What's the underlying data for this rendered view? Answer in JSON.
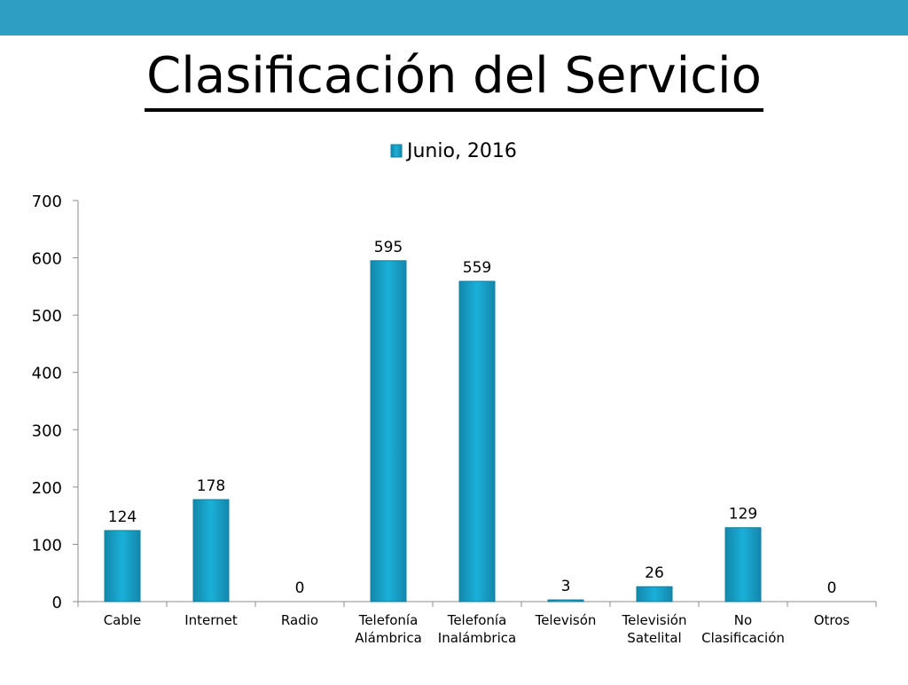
{
  "slide": {
    "title": "Clasificación del Servicio",
    "accent_color": "#2e9fc2"
  },
  "chart_data": {
    "type": "bar",
    "legend_position": "top",
    "grid": false,
    "categories": [
      [
        "Cable"
      ],
      [
        "Internet"
      ],
      [
        "Radio"
      ],
      [
        "Telefonía",
        "Alámbrica"
      ],
      [
        "Telefonía",
        "Inalámbrica"
      ],
      [
        "Televisón"
      ],
      [
        "Televisión",
        "Satelital"
      ],
      [
        "No",
        "Clasificación"
      ],
      [
        "Otros"
      ]
    ],
    "series": [
      {
        "name": "Junio, 2016",
        "color": "#1aa3cc",
        "values": [
          124,
          178,
          0,
          595,
          559,
          3,
          26,
          129,
          0
        ]
      }
    ],
    "ylim": [
      0,
      700
    ],
    "yticks": [
      0,
      100,
      200,
      300,
      400,
      500,
      600,
      700
    ],
    "data_labels": true
  }
}
